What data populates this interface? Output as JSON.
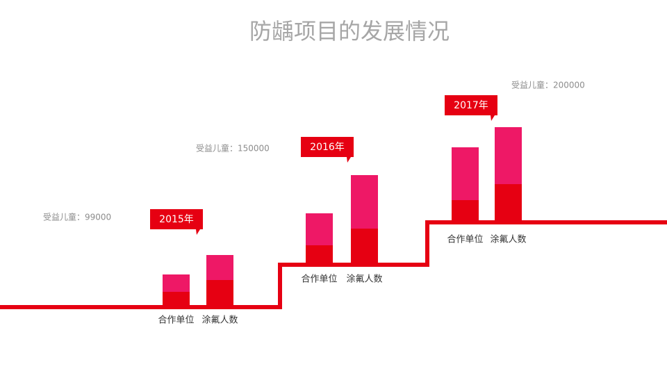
{
  "header": {
    "title": "防龋项目的发展情况"
  },
  "groups": [
    {
      "year": "2015年",
      "benefit": "受益儿童：99000",
      "labels": [
        "合作单位",
        "涂氟人数"
      ]
    },
    {
      "year": "2016年",
      "benefit": "受益儿童：150000",
      "labels": [
        "合作单位",
        "涂氟人数"
      ]
    },
    {
      "year": "2017年",
      "benefit": "受益儿童：200000",
      "labels": [
        "合作单位",
        "涂氟人数"
      ]
    }
  ]
}
